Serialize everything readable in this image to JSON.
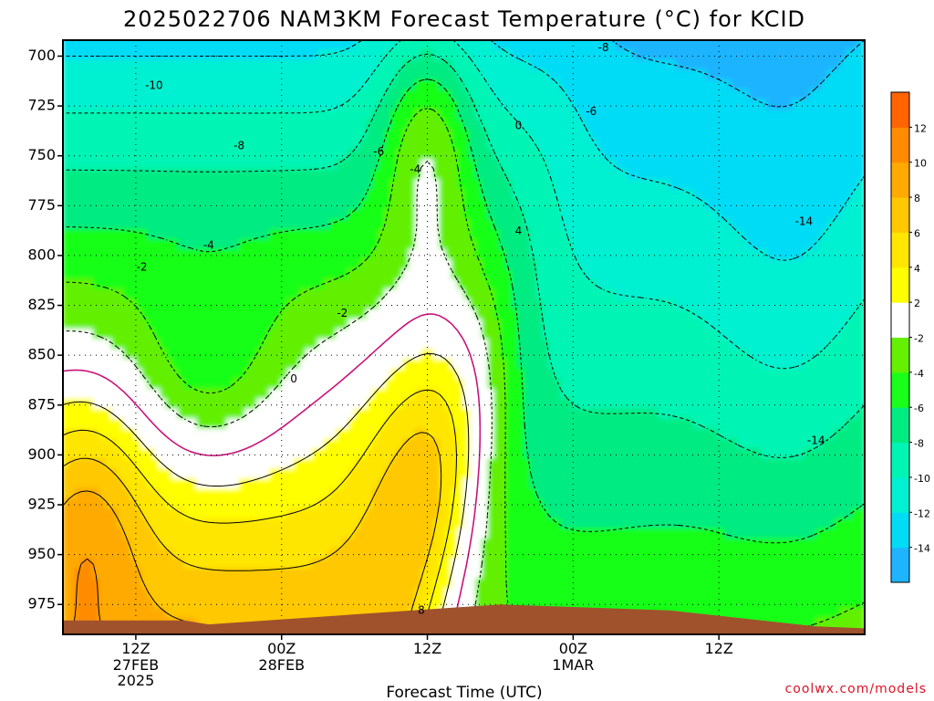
{
  "chart_data": {
    "type": "heatmap",
    "title": "2025022706 NAM3KM Forecast Temperature (°C) for KCID",
    "xlabel": "Forecast Time (UTC)",
    "ylabel": "",
    "ylim": [
      990,
      692
    ],
    "y_scale": "linear (pressure, hPa), inverted",
    "grid": true,
    "y_ticks": [
      700,
      725,
      750,
      775,
      800,
      825,
      850,
      875,
      900,
      925,
      950,
      975
    ],
    "x_range": [
      "2025-02-27T06Z",
      "2025-03-02T00Z"
    ],
    "x_ticks": [
      {
        "time": "2025-02-27T12Z",
        "label": "12Z",
        "date": "27FEB",
        "year": "2025"
      },
      {
        "time": "2025-02-28T00Z",
        "label": "00Z",
        "date": "28FEB",
        "year": ""
      },
      {
        "time": "2025-02-28T12Z",
        "label": "12Z",
        "date": "",
        "year": ""
      },
      {
        "time": "2025-03-01T00Z",
        "label": "00Z",
        "date": "1MAR",
        "year": ""
      },
      {
        "time": "2025-03-01T12Z",
        "label": "12Z",
        "date": "",
        "year": ""
      }
    ],
    "colorbar": {
      "levels": [
        -16,
        -14,
        -12,
        -10,
        -8,
        -6,
        -4,
        -2,
        2,
        4,
        6,
        8,
        10,
        12,
        14
      ],
      "labels": [
        "-14",
        "-12",
        "-10",
        "-8",
        "-6",
        "-4",
        "-2",
        "2",
        "4",
        "6",
        "8",
        "10",
        "12"
      ],
      "colors": [
        "#1eb4ff",
        "#00dcf5",
        "#00f0d2",
        "#00f5b4",
        "#00eb82",
        "#19ff19",
        "#64f000",
        "#ffffff",
        "#ffff00",
        "#ffe600",
        "#ffc800",
        "#ffaa00",
        "#ff8c00",
        "#ff6400"
      ]
    },
    "freezing_line_color": "#c8147a",
    "terrain_color": "#a0522d",
    "contour_labels": [
      {
        "text": "-10",
        "hour": 7.5,
        "p": 715
      },
      {
        "text": "-8",
        "hour": 14.5,
        "p": 745
      },
      {
        "text": "-6",
        "hour": 26,
        "p": 748
      },
      {
        "text": "-4",
        "hour": 29,
        "p": 757
      },
      {
        "text": "-4",
        "hour": 12,
        "p": 795
      },
      {
        "text": "-2",
        "hour": 6.5,
        "p": 806
      },
      {
        "text": "0",
        "hour": 19,
        "p": 862
      },
      {
        "text": "-2",
        "hour": 23,
        "p": 829
      },
      {
        "text": "0",
        "hour": 37.5,
        "p": 735
      },
      {
        "text": "4",
        "hour": 37.5,
        "p": 788
      },
      {
        "text": "8",
        "hour": 29.5,
        "p": 978
      },
      {
        "text": "-8",
        "hour": 44.5,
        "p": 696
      },
      {
        "text": "-6",
        "hour": 43.5,
        "p": 728
      },
      {
        "text": "-14",
        "hour": 61,
        "p": 783
      },
      {
        "text": "-14",
        "hour": 62,
        "p": 893
      }
    ]
  },
  "footer": {
    "credit": "coolwx.com/models"
  }
}
